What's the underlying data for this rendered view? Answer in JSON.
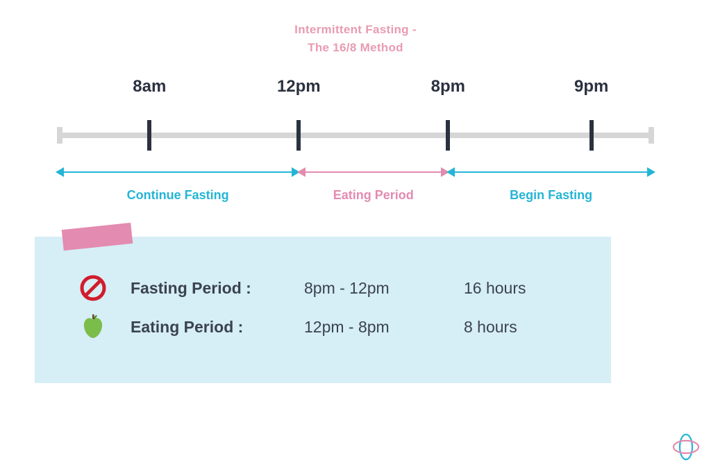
{
  "title": {
    "line1": "Intermittent Fasting   -",
    "line2": "The 16/8 Method"
  },
  "colors": {
    "title": "#e89bb1",
    "baseline": "#d6d6d6",
    "tick": "#2b3140",
    "blue": "#24b5d6",
    "pink": "#e38bb0",
    "box_bg": "#d6eef6",
    "text_dark": "#2b3140",
    "info_text": "#3b4252",
    "no_red": "#d11c2c",
    "apple_green": "#7bbd4a",
    "apple_dark": "#5e9236"
  },
  "timeline": {
    "ticks": [
      {
        "label": "8am",
        "pos_pct": 15.5
      },
      {
        "label": "12pm",
        "pos_pct": 40.5
      },
      {
        "label": "8pm",
        "pos_pct": 65.5
      },
      {
        "label": "9pm",
        "pos_pct": 89.5
      }
    ],
    "segments": [
      {
        "label": "Continue Fasting",
        "color_key": "blue",
        "start_pct": 0,
        "end_pct": 40.5
      },
      {
        "label": "Eating Period",
        "color_key": "pink",
        "start_pct": 40.5,
        "end_pct": 65.5
      },
      {
        "label": "Begin Fasting",
        "color_key": "blue",
        "start_pct": 65.5,
        "end_pct": 100
      }
    ]
  },
  "info": {
    "rows": [
      {
        "icon": "no",
        "label": "Fasting Period :",
        "time": "8pm - 12pm",
        "dur": "16 hours"
      },
      {
        "icon": "apple",
        "label": "Eating Period  :",
        "time": "12pm - 8pm",
        "dur": "8 hours"
      }
    ]
  },
  "fontsize": {
    "title": 17,
    "time_label": 24,
    "seg_label": 18,
    "info": 23
  }
}
